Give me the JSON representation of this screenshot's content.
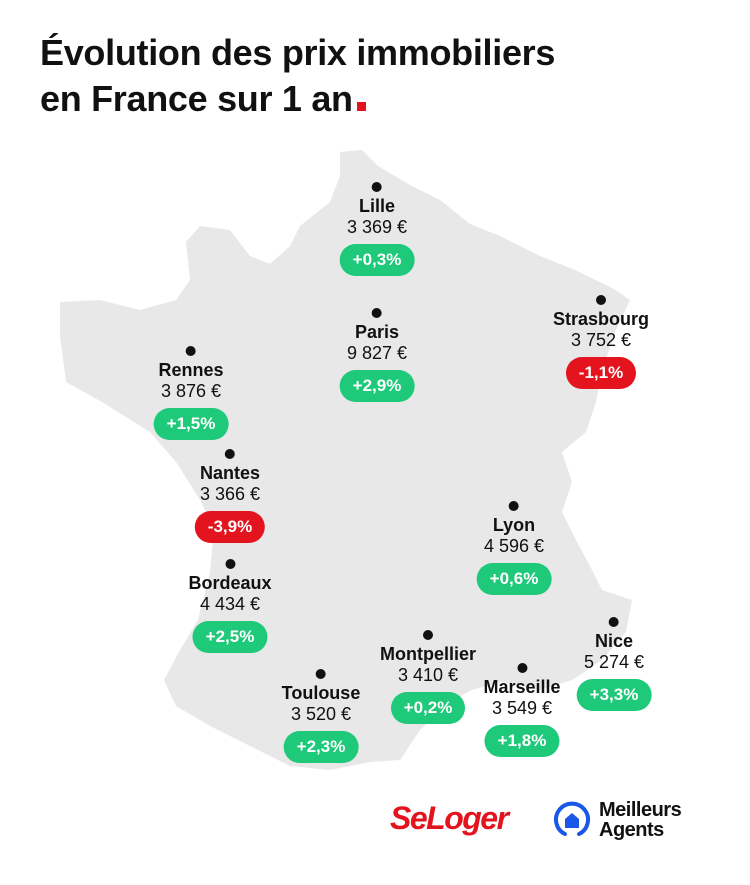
{
  "title": {
    "line1": "Évolution des prix immobiliers",
    "line2": "en France sur 1 an"
  },
  "colors": {
    "increase": "#1ec97a",
    "decrease": "#e3141e",
    "map": "#e8e8e8",
    "brand_red": "#e3141e",
    "brand_blue": "#1a56e8"
  },
  "cities": [
    {
      "name": "Lille",
      "price": "3 369 €",
      "change": "+0,3%",
      "trend": "up"
    },
    {
      "name": "Paris",
      "price": "9 827 €",
      "change": "+2,9%",
      "trend": "up"
    },
    {
      "name": "Strasbourg",
      "price": "3 752 €",
      "change": "-1,1%",
      "trend": "down"
    },
    {
      "name": "Rennes",
      "price": "3 876 €",
      "change": "+1,5%",
      "trend": "up"
    },
    {
      "name": "Nantes",
      "price": "3 366 €",
      "change": "-3,9%",
      "trend": "down"
    },
    {
      "name": "Bordeaux",
      "price": "4 434 €",
      "change": "+2,5%",
      "trend": "up"
    },
    {
      "name": "Lyon",
      "price": "4 596 €",
      "change": "+0,6%",
      "trend": "up"
    },
    {
      "name": "Montpellier",
      "price": "3 410 €",
      "change": "+0,2%",
      "trend": "up"
    },
    {
      "name": "Toulouse",
      "price": "3 520 €",
      "change": "+2,3%",
      "trend": "up"
    },
    {
      "name": "Marseille",
      "price": "3 549 €",
      "change": "+1,8%",
      "trend": "up"
    },
    {
      "name": "Nice",
      "price": "5 274 €",
      "change": "+3,3%",
      "trend": "up"
    }
  ],
  "logos": {
    "seloger": "SeLoger",
    "meilleurs_agents_line1": "Meilleurs",
    "meilleurs_agents_line2": "Agents"
  }
}
